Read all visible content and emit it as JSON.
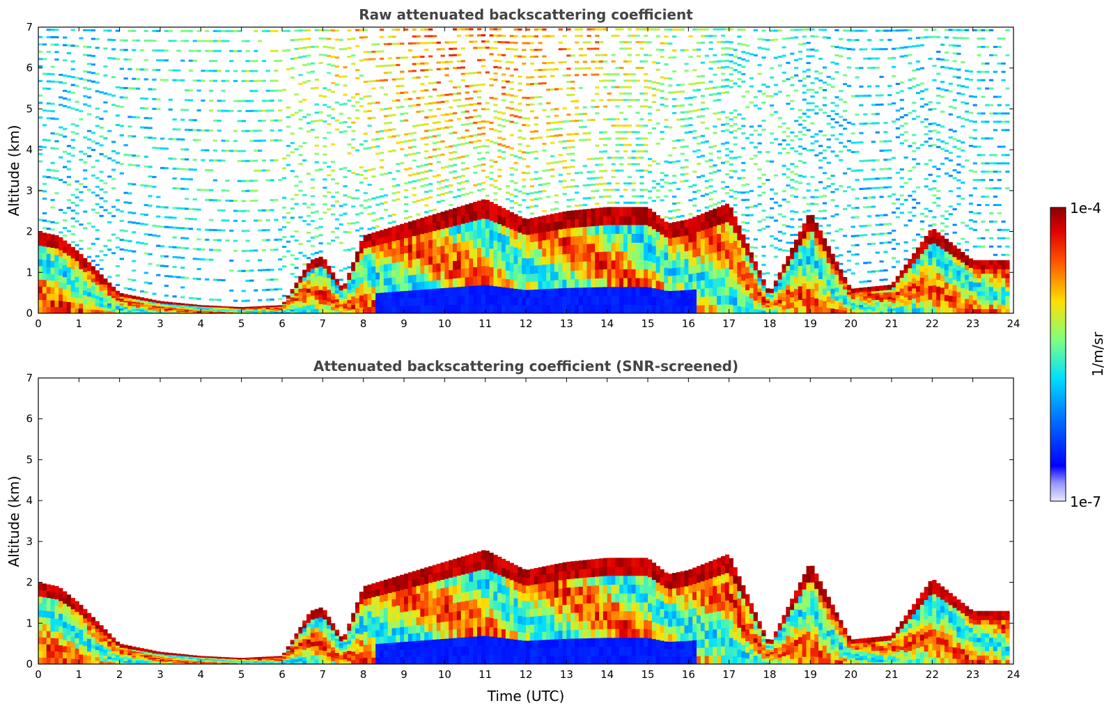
{
  "chart_data": [
    {
      "type": "heatmap",
      "title": "Raw attenuated backscattering coefficient",
      "xlabel": "",
      "ylabel": "Altitude (km)",
      "xlim": [
        0,
        24
      ],
      "ylim": [
        0,
        7
      ],
      "xticks": [
        "0",
        "1",
        "2",
        "3",
        "4",
        "5",
        "6",
        "7",
        "8",
        "9",
        "10",
        "11",
        "12",
        "13",
        "14",
        "15",
        "16",
        "17",
        "18",
        "19",
        "20",
        "21",
        "22",
        "23",
        "24"
      ],
      "yticks": [
        "0",
        "1",
        "2",
        "3",
        "4",
        "5",
        "6",
        "7"
      ],
      "colormap": "jet",
      "screened": false,
      "cloud_base_track_km": [
        [
          0,
          2.0
        ],
        [
          0.5,
          1.9
        ],
        [
          1,
          1.5
        ],
        [
          2,
          0.5
        ],
        [
          3,
          0.3
        ],
        [
          4,
          0.2
        ],
        [
          5,
          0.15
        ],
        [
          6,
          0.2
        ],
        [
          6.7,
          1.3
        ],
        [
          7,
          1.4
        ],
        [
          7.5,
          0.6
        ],
        [
          8,
          1.9
        ],
        [
          9,
          2.2
        ],
        [
          10,
          2.5
        ],
        [
          11,
          2.8
        ],
        [
          12,
          2.3
        ],
        [
          13,
          2.5
        ],
        [
          14,
          2.6
        ],
        [
          15,
          2.6
        ],
        [
          15.5,
          2.2
        ],
        [
          16,
          2.3
        ],
        [
          17,
          2.7
        ],
        [
          18,
          0.5
        ],
        [
          19,
          2.5
        ],
        [
          20,
          0.6
        ],
        [
          21,
          0.7
        ],
        [
          22,
          2.1
        ],
        [
          23,
          1.3
        ],
        [
          23.8,
          1.3
        ]
      ]
    },
    {
      "type": "heatmap",
      "title": "Attenuated backscattering coefficient (SNR-screened)",
      "xlabel": "Time (UTC)",
      "ylabel": "Altitude (km)",
      "xlim": [
        0,
        24
      ],
      "ylim": [
        0,
        7
      ],
      "xticks": [
        "0",
        "1",
        "2",
        "3",
        "4",
        "5",
        "6",
        "7",
        "8",
        "9",
        "10",
        "11",
        "12",
        "13",
        "14",
        "15",
        "16",
        "17",
        "18",
        "19",
        "20",
        "21",
        "22",
        "23",
        "24"
      ],
      "yticks": [
        "0",
        "1",
        "2",
        "3",
        "4",
        "5",
        "6",
        "7"
      ],
      "colormap": "jet",
      "screened": true
    }
  ],
  "colorbar": {
    "label": "1/m/sr",
    "max_label": "1e-4",
    "min_label": "1e-7",
    "scale": "log",
    "range": [
      1e-07,
      0.0001
    ]
  },
  "colors": {
    "low": "#0000ff",
    "high": "#8b0000",
    "text": "#444444"
  }
}
